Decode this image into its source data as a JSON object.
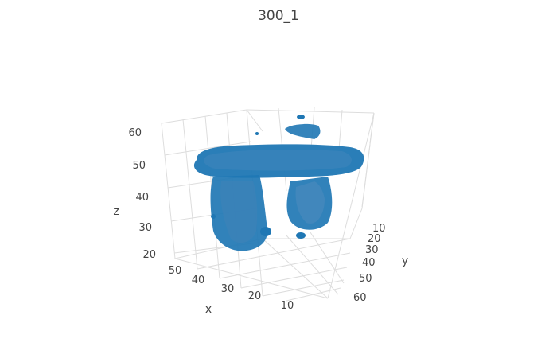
{
  "title": "300_1",
  "chart_data": {
    "type": "3d-isosurface",
    "title": "300_1",
    "axes": {
      "x": {
        "label": "x",
        "ticks": [
          "50",
          "40",
          "30",
          "20",
          "10"
        ]
      },
      "y": {
        "label": "y",
        "ticks": [
          "10",
          "20",
          "30",
          "40",
          "50",
          "60"
        ]
      },
      "z": {
        "label": "z",
        "ticks": [
          "60",
          "50",
          "40",
          "30",
          "20"
        ]
      }
    },
    "surface_color": "#1f77b4",
    "grid": true,
    "description_visible": false
  }
}
